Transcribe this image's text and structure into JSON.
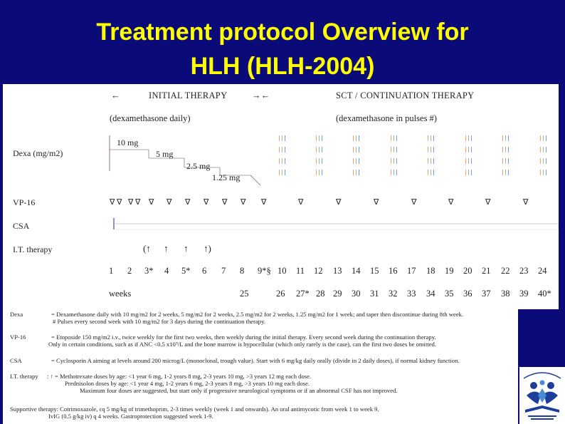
{
  "title": {
    "line1": "Treatment protocol Overview for",
    "line2": "HLH (HLH-2004)"
  },
  "chart": {
    "header_initial": "INITIAL THERAPY",
    "header_sct": "SCT / CONTINUATION THERAPY",
    "arrow_left": "←",
    "arrow_mid": "→←",
    "sub_initial": "(dexamethasone daily)",
    "sub_sct": "(dexamethasone in pulses #)",
    "rows": {
      "dexa": "Dexa (mg/m2)",
      "vp16": "VP-16",
      "csa": "CSA",
      "it": "I.T. therapy"
    },
    "dose_steps": [
      "10 mg",
      "5 mg",
      "2.5 mg",
      "1.25 mg"
    ],
    "triangle": "∇",
    "it_marks": [
      "(↑",
      "↑",
      "↑",
      "↑)"
    ],
    "weeks_top": [
      "1",
      "2",
      "3*",
      "4",
      "5*",
      "6",
      "7",
      "8",
      "9*§",
      "10",
      "11",
      "12",
      "13",
      "14",
      "15",
      "16",
      "17",
      "18",
      "19",
      "20",
      "21",
      "22",
      "23",
      "24"
    ],
    "weeks_label": "weeks",
    "weeks_bottom": [
      "25",
      "26",
      "27*",
      "28",
      "29",
      "30",
      "31",
      "32",
      "33",
      "34",
      "35",
      "36",
      "37",
      "38",
      "39",
      "40*"
    ]
  },
  "notes": {
    "dexa_label": "Dexa",
    "dexa_text": "=  Dexamethasone daily with 10 mg/m2 for 2 weeks, 5 mg/m2 for 2 weeks, 2.5 mg/m2 for 2 weeks, 1.25 mg/m2 for 1 week; and taper then discontinue during 8th week.",
    "dexa_text2": "#  Pulses every second week with 10 mg/m2 for 3 days during the continuation therapy.",
    "vp_label": "VP-16",
    "vp_text": "=  Etoposide 150 mg/m2 i.v., twice weekly for the first two weeks, then weekly during the initial therapy. Every second week during the continuation therapy.",
    "vp_text2": "Only in certain conditions, such as if ANC <0.5 x10⁹/L and the bone marrow is hypocellular (which only rarely is the case), can the first two doses be omitted.",
    "csa_label": "CSA",
    "csa_text": "=  Cyclosporin A aiming at levels around 200 microg/L (monoclonal, trough value). Start with 6 mg/kg daily orally (divide in 2 daily doses), if normal kidney function.",
    "it_label": "I.T. therapy",
    "it_text": ":  ↑ = Methotrexate doses by age: <1 year 6 mg, 1-2 years 8 mg, 2-3 years 10 mg, >3 years 12 mg each dose.",
    "it_text2": "Prednisolon doses by age:  <1 year 4 mg, 1-2 years 6 mg, 2-3 years  8 mg, >3 years 10 mg each dose.",
    "it_text3": "Maximum four doses are suggested, but start only if progressive neurological symptoms or if an abnormal CSF has not improved.",
    "sup_text": "Supportive therapy: Cotrimoxazole, cq 5 mg/kg of trimethoprim, 2-3 times weekly (week 1 and onwards). An oral antimycotic from week 1 to week 9.",
    "sup_text2": "IvIG (0.5 g/kg iv) q 4 weeks. Gastroprotection suggested week 1-9."
  },
  "colors": {
    "background": "#0a0a78",
    "title": "#ffff00",
    "pulse_dash_colors": [
      "#e8a070",
      "#90c890",
      "#7a9ad8"
    ]
  }
}
